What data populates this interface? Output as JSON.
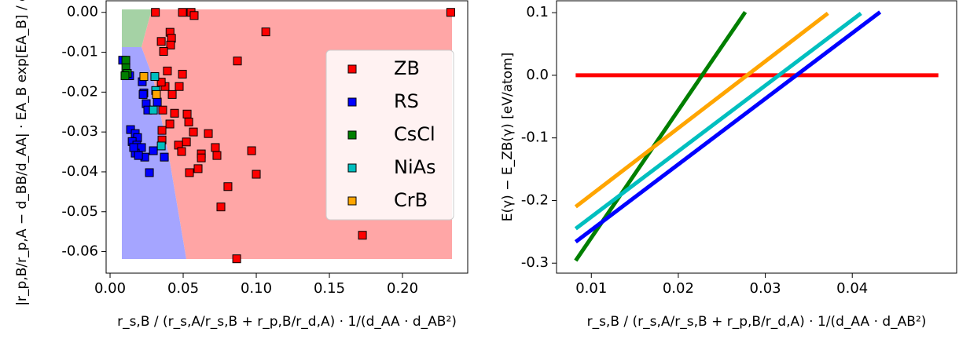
{
  "chart_data": [
    {
      "type": "scatter",
      "xlabel": "r_s,B / (r_s,A/r_s,B + r_p,B/r_d,A) · 1/(d_AA · d_AB²)",
      "ylabel": "|r_p,B/r_p,A − d_BB/d_AA| · EA_B exp[EA_B] / d_AB",
      "xlim": [
        -0.0027,
        0.2446
      ],
      "ylim": [
        -0.0654,
        0.0029
      ],
      "xticks": [
        {
          "value": 0,
          "label": "0.00"
        },
        {
          "value": 0.05,
          "label": "0.05"
        },
        {
          "value": 0.1,
          "label": "0.10"
        },
        {
          "value": 0.15,
          "label": "0.15"
        },
        {
          "value": 0.2,
          "label": "0.20"
        }
      ],
      "yticks": [
        {
          "value": 0,
          "label": "0.00"
        },
        {
          "value": -0.01,
          "label": "-0.01"
        },
        {
          "value": -0.02,
          "label": "-0.02"
        },
        {
          "value": -0.03,
          "label": "-0.03"
        },
        {
          "value": -0.04,
          "label": "-0.04"
        },
        {
          "value": -0.05,
          "label": "-0.05"
        },
        {
          "value": -0.06,
          "label": "-0.06"
        }
      ],
      "legend": "right",
      "series": [
        {
          "name": "ZB",
          "color": "#ff0000",
          "x": [
            0.031,
            0.0495,
            0.0554,
            0.0575,
            0.233,
            0.1065,
            0.041,
            0.035,
            0.042,
            0.0414,
            0.0366,
            0.0871,
            0.0392,
            0.0495,
            0.0473,
            0.0376,
            0.0425,
            0.035,
            0.036,
            0.0441,
            0.0527,
            0.0538,
            0.0409,
            0.057,
            0.0355,
            0.0672,
            0.0522,
            0.0468,
            0.0489,
            0.0624,
            0.072,
            0.0731,
            0.0355,
            0.0543,
            0.0968,
            0.1,
            0.0624,
            0.0602,
            0.0806,
            0.0758,
            0.1726,
            0.0866
          ],
          "values": [
            0,
            0,
            0,
            -0.0008,
            0,
            -0.0049,
            -0.005,
            -0.0073,
            -0.0065,
            -0.0082,
            -0.0098,
            -0.0122,
            -0.0147,
            -0.0155,
            -0.0186,
            -0.0186,
            -0.0206,
            -0.0175,
            -0.0245,
            -0.0253,
            -0.0255,
            -0.0275,
            -0.028,
            -0.03,
            -0.0296,
            -0.0304,
            -0.0325,
            -0.0333,
            -0.0349,
            -0.0355,
            -0.0339,
            -0.0359,
            -0.032,
            -0.0402,
            -0.0347,
            -0.0406,
            -0.0365,
            -0.0392,
            -0.0437,
            -0.0488,
            -0.0559,
            -0.0618
          ]
        },
        {
          "name": "RS",
          "color": "#0000ff",
          "x": [
            0.0086,
            0.0134,
            0.022,
            0.0231,
            0.0247,
            0.0258,
            0.014,
            0.0172,
            0.0188,
            0.0151,
            0.0183,
            0.0215,
            0.0237,
            0.0172,
            0.0194,
            0.0269,
            0.0371,
            0.0296,
            0.0226,
            0.0323,
            0.0161
          ],
          "values": [
            -0.012,
            -0.0159,
            -0.0174,
            -0.0202,
            -0.0229,
            -0.0245,
            -0.0294,
            -0.0304,
            -0.0314,
            -0.0324,
            -0.0333,
            -0.0339,
            -0.0363,
            -0.0353,
            -0.0359,
            -0.0402,
            -0.0363,
            -0.0347,
            -0.0206,
            -0.0225,
            -0.0339
          ]
        },
        {
          "name": "CsCl",
          "color": "#007f00",
          "x": [
            0.0108,
            0.0108,
            0.0118,
            0.0102
          ],
          "values": [
            -0.012,
            -0.0139,
            -0.0153,
            -0.0159
          ]
        },
        {
          "name": "NiAs",
          "color": "#00bfbf",
          "x": [
            0.0306,
            0.0312,
            0.0296,
            0.035
          ],
          "values": [
            -0.0161,
            -0.0196,
            -0.0245,
            -0.0335
          ]
        },
        {
          "name": "CrB",
          "color": "#ffa500",
          "x": [
            0.0231,
            0.0317
          ],
          "values": [
            -0.0161,
            -0.0206
          ]
        }
      ]
    },
    {
      "type": "line",
      "xlabel": "r_s,B / (r_s,A/r_s,B + r_p,B/r_d,A) · 1/(d_AA · d_AB²)",
      "ylabel": "E(γ) − E_ZB(γ) [eV/atom]",
      "xlim": [
        0.006,
        0.052
      ],
      "ylim": [
        -0.316,
        0.119
      ],
      "xticks": [
        0.01,
        0.02,
        0.03,
        0.04
      ],
      "yticks": [
        0.1,
        {
          "value": 0,
          "label": "0.0"
        },
        -0.1,
        -0.2,
        -0.3
      ],
      "series": [
        {
          "color": "#ff0000",
          "x": [
            0.0082,
            0.0499
          ],
          "values": [
            0,
            0
          ]
        },
        {
          "color": "#007f00",
          "x": [
            0.0082,
            0.0277
          ],
          "values": [
            -0.296,
            0.101
          ]
        },
        {
          "color": "#0000ff",
          "x": [
            0.0082,
            0.0432
          ],
          "values": [
            -0.266,
            0.101
          ]
        },
        {
          "color": "#00bfbf",
          "x": [
            0.0082,
            0.041
          ],
          "values": [
            -0.245,
            0.099
          ]
        },
        {
          "color": "#ffa500",
          "x": [
            0.0082,
            0.0372
          ],
          "values": [
            -0.21,
            0.099
          ]
        }
      ]
    }
  ]
}
